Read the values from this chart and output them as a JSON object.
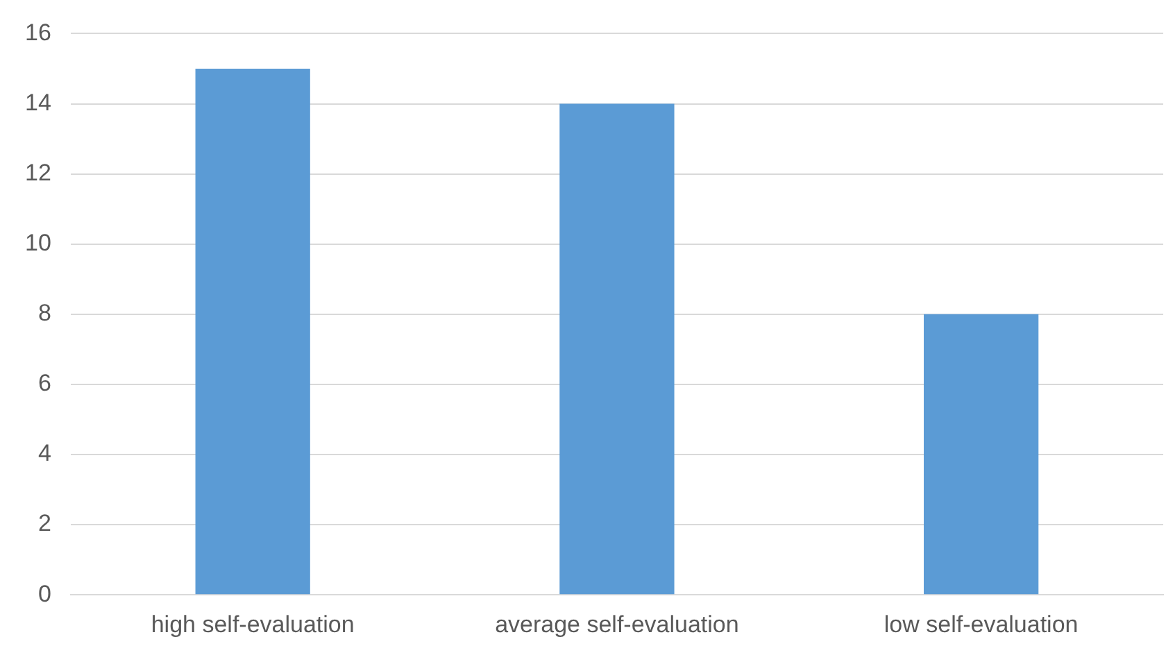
{
  "chart_data": {
    "type": "bar",
    "categories": [
      "high self-evaluation",
      "average self-evaluation",
      "low self-evaluation"
    ],
    "values": [
      15,
      14,
      8
    ],
    "color": "#5b9bd5",
    "ylim": [
      0,
      16
    ],
    "yticks": [
      0,
      2,
      4,
      6,
      8,
      10,
      12,
      14,
      16
    ],
    "grid": "y",
    "legend": false
  }
}
